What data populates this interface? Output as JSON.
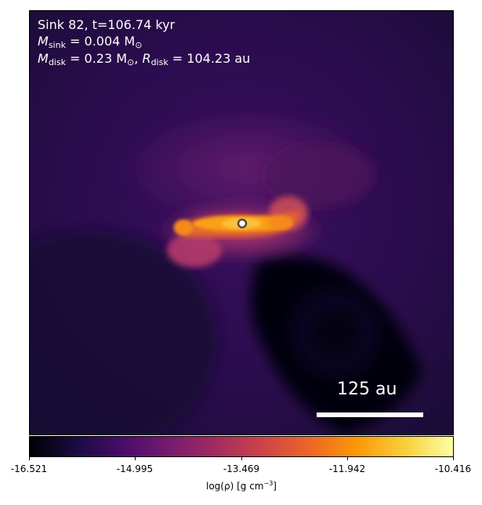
{
  "annotation": {
    "line1": "Sink 82, t=106.74 kyr",
    "msink_symbol": "M",
    "msink_sub": "sink",
    "msink_value": " = 0.004 M",
    "sun_symbol": "⊙",
    "mdisk_symbol": "M",
    "mdisk_sub": "disk",
    "mdisk_value": " = 0.23 M",
    "rdisk_sep": ", ",
    "rdisk_symbol": "R",
    "rdisk_sub": "disk",
    "rdisk_value": " = 104.23 au"
  },
  "scalebar": {
    "label": "125 au"
  },
  "colorbar": {
    "colormap": "inferno",
    "ticks": [
      "-16.521",
      "-14.995",
      "-13.469",
      "-11.942",
      "-10.416"
    ],
    "label_main": "log(ρ) [g cm",
    "label_exp": "−3",
    "label_close": "]"
  },
  "colors": {
    "background_dark": "#1a0b3a",
    "disk_hot": "#fca50a",
    "sink_marker_fill": "#ffffff",
    "sink_marker_edge": "#444444"
  }
}
